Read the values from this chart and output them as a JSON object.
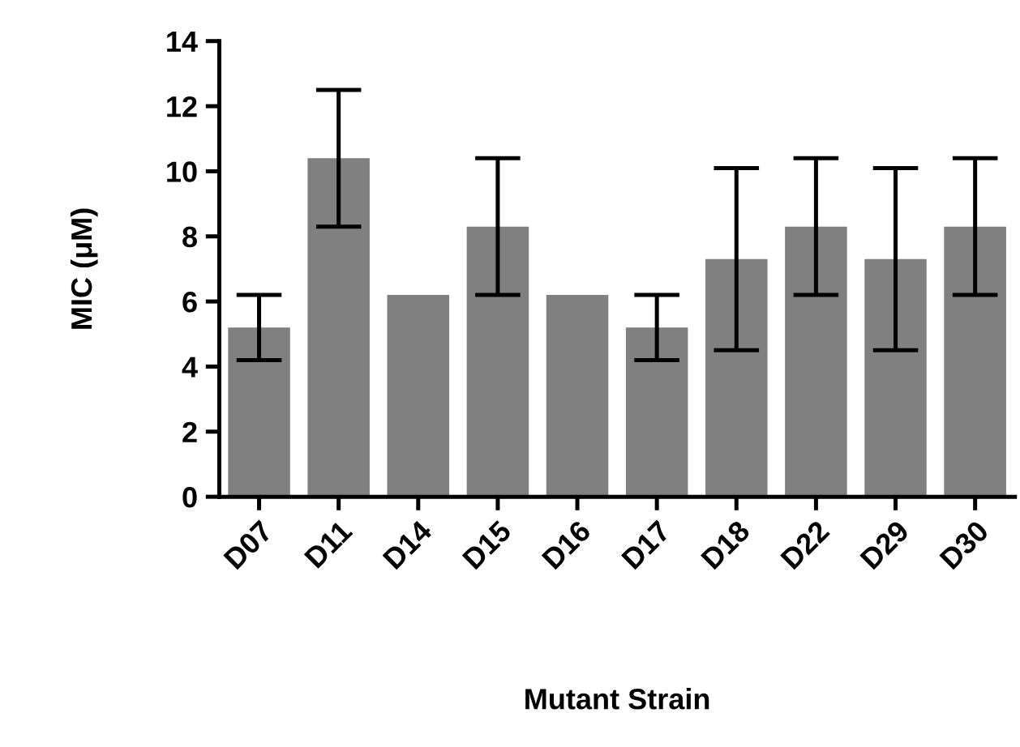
{
  "chart_data": {
    "type": "bar",
    "xlabel": "Mutant Strain",
    "ylabel": "MIC (μM)",
    "categories": [
      "D07",
      "D11",
      "D14",
      "D15",
      "D16",
      "D17",
      "D18",
      "D22",
      "D29",
      "D30"
    ],
    "values": [
      5.2,
      10.4,
      6.2,
      8.3,
      6.2,
      5.2,
      7.3,
      8.3,
      7.3,
      8.3
    ],
    "errors": [
      1.0,
      2.1,
      null,
      2.1,
      null,
      1.0,
      2.8,
      2.1,
      2.8,
      2.1
    ],
    "color": "#808080",
    "ylim": [
      0,
      14
    ],
    "yticks": [
      0,
      2,
      4,
      6,
      8,
      10,
      12,
      14
    ],
    "grid": false,
    "legend": false
  }
}
